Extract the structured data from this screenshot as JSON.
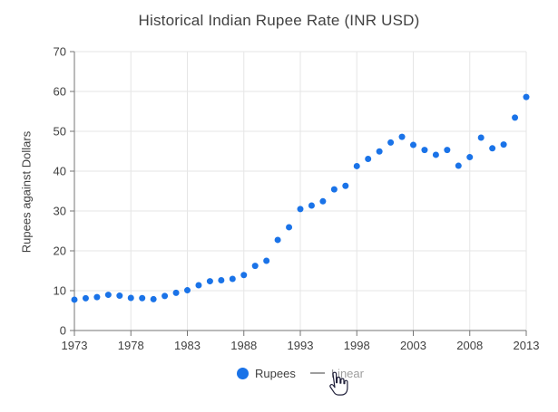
{
  "title": "Historical Indian Rupee Rate (INR USD)",
  "chart_data": {
    "type": "scatter",
    "title": "Historical Indian Rupee Rate (INR USD)",
    "xlabel": "",
    "ylabel": "Rupees against Dollars",
    "x": [
      1973,
      1974,
      1975,
      1976,
      1977,
      1978,
      1979,
      1980,
      1981,
      1982,
      1983,
      1984,
      1985,
      1986,
      1987,
      1988,
      1989,
      1990,
      1991,
      1992,
      1993,
      1994,
      1995,
      1996,
      1997,
      1998,
      1999,
      2000,
      2001,
      2002,
      2003,
      2004,
      2005,
      2006,
      2007,
      2008,
      2009,
      2010,
      2011,
      2012,
      2013
    ],
    "series": [
      {
        "name": "Rupees",
        "color": "#1a73e8",
        "visible": true,
        "values": [
          7.74,
          8.1,
          8.38,
          8.96,
          8.74,
          8.19,
          8.13,
          7.86,
          8.66,
          9.46,
          10.1,
          11.36,
          12.37,
          12.61,
          12.96,
          13.92,
          16.23,
          17.5,
          22.74,
          25.92,
          30.49,
          31.37,
          32.43,
          35.43,
          36.31,
          41.26,
          43.06,
          44.94,
          47.19,
          48.61,
          46.58,
          45.32,
          44.1,
          45.31,
          41.35,
          43.51,
          48.41,
          45.73,
          46.67,
          53.44,
          58.6
        ]
      }
    ],
    "trendline": {
      "name": "Linear",
      "type": "linear",
      "visible": false,
      "color": "#9e9e9e"
    },
    "xlim": [
      1973,
      2013
    ],
    "ylim": [
      0,
      70
    ],
    "x_ticks": [
      1973,
      1978,
      1983,
      1988,
      1993,
      1998,
      2003,
      2008,
      2013
    ],
    "y_ticks": [
      0,
      10,
      20,
      30,
      40,
      50,
      60,
      70
    ],
    "grid": true,
    "legend_position": "bottom"
  },
  "legend": {
    "items": [
      {
        "label": "Rupees",
        "marker": "dot",
        "color": "#1a73e8",
        "text_color": "#404040",
        "state": "active"
      },
      {
        "label": "Linear",
        "marker": "line",
        "color": "#9e9e9e",
        "text_color": "#9e9e9e",
        "state": "hidden"
      }
    ]
  },
  "cursor": {
    "type": "hand-pointer",
    "target": "Linear legend item"
  },
  "colors": {
    "background": "#ffffff",
    "grid": "#e6e6e6",
    "axis": "#757575",
    "tick": "#757575",
    "tick_label": "#404040",
    "title": "#424242"
  }
}
